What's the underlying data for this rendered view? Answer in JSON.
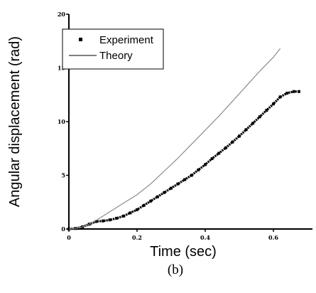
{
  "chart_data": {
    "type": "line",
    "caption": "(b)",
    "xlabel": "Time (sec)",
    "ylabel": "Angular displacement (rad)",
    "xlim": [
      0,
      0.7
    ],
    "ylim": [
      0,
      20
    ],
    "x_ticks": [
      "0",
      "0.2",
      "0.4",
      "0.6"
    ],
    "y_ticks": [
      "0",
      "5",
      "10",
      "15",
      "20"
    ],
    "grid": false,
    "legend_position": "top-left",
    "series": [
      {
        "name": "Experiment",
        "style": "markers",
        "color": "#000000",
        "x": [
          0,
          0.02,
          0.04,
          0.06,
          0.08,
          0.1,
          0.12,
          0.14,
          0.16,
          0.18,
          0.2,
          0.22,
          0.24,
          0.26,
          0.28,
          0.3,
          0.32,
          0.34,
          0.36,
          0.38,
          0.4,
          0.42,
          0.44,
          0.46,
          0.48,
          0.5,
          0.52,
          0.54,
          0.56,
          0.58,
          0.6,
          0.62,
          0.64,
          0.66,
          0.675
        ],
        "y": [
          0,
          0.05,
          0.2,
          0.45,
          0.7,
          0.75,
          0.85,
          1.0,
          1.2,
          1.5,
          1.8,
          2.2,
          2.6,
          3.0,
          3.4,
          3.8,
          4.2,
          4.6,
          5.0,
          5.5,
          6.0,
          6.55,
          7.05,
          7.55,
          8.1,
          8.65,
          9.25,
          9.85,
          10.45,
          11.05,
          11.65,
          12.3,
          12.65,
          12.8,
          12.8
        ]
      },
      {
        "name": "Theory",
        "style": "line",
        "color": "#8a8a8a",
        "x": [
          0,
          0.02,
          0.04,
          0.06,
          0.08,
          0.1,
          0.12,
          0.14,
          0.16,
          0.18,
          0.2,
          0.24,
          0.28,
          0.32,
          0.36,
          0.4,
          0.44,
          0.48,
          0.52,
          0.56,
          0.6,
          0.62
        ],
        "y": [
          0,
          0.05,
          0.2,
          0.45,
          0.8,
          1.2,
          1.6,
          2.0,
          2.4,
          2.8,
          3.2,
          4.2,
          5.4,
          6.6,
          7.9,
          9.2,
          10.5,
          11.9,
          13.3,
          14.7,
          16.0,
          16.8
        ]
      }
    ]
  }
}
